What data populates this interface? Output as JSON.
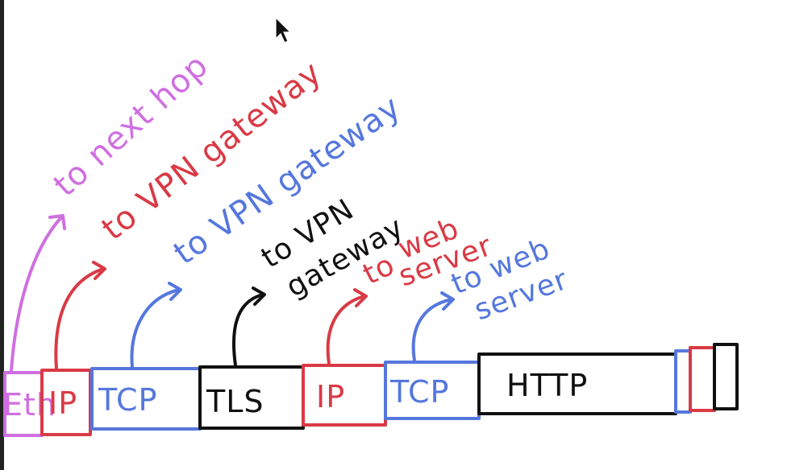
{
  "colors": {
    "pink": "#cf6fe0",
    "red": "#d93a45",
    "blue": "#5577dd",
    "black": "#111111"
  },
  "packet": {
    "segments": [
      {
        "label": "Eth",
        "color": "pink"
      },
      {
        "label": "IP",
        "color": "red"
      },
      {
        "label": "TCP",
        "color": "blue"
      },
      {
        "label": "TLS",
        "color": "black"
      },
      {
        "label": "IP",
        "color": "red"
      },
      {
        "label": "TCP",
        "color": "blue"
      },
      {
        "label": "HTTP",
        "color": "black"
      }
    ]
  },
  "annotations": {
    "eth": "to next hop",
    "outer_ip": "to VPN gateway",
    "outer_tcp": "to VPN gateway",
    "tls_line1": "to VPN",
    "tls_line2": "gateway",
    "inner_ip_to": "to",
    "inner_ip_line1": "web",
    "inner_ip_line2": "server",
    "inner_tcp_line1": "to web",
    "inner_tcp_line2": "server"
  }
}
